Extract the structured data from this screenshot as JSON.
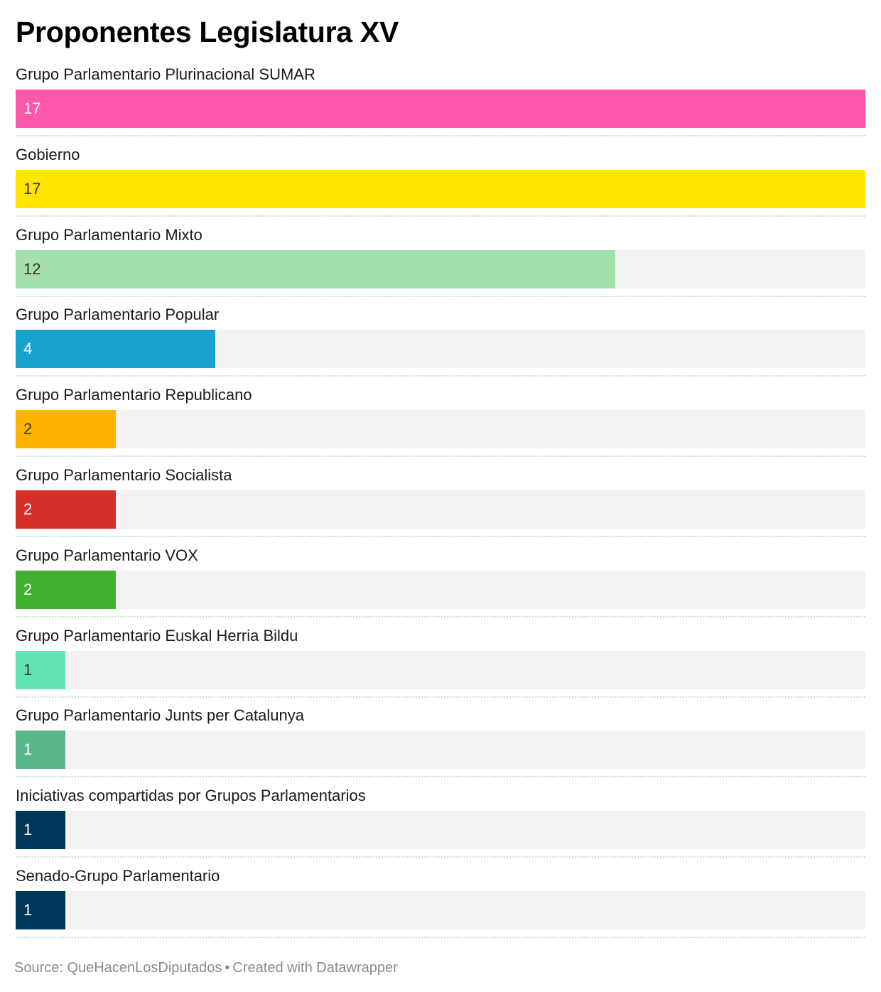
{
  "chart_data": {
    "type": "bar",
    "title": "Proponentes Legislatura XV",
    "orientation": "horizontal",
    "categories": [
      "Grupo Parlamentario Plurinacional SUMAR",
      "Gobierno",
      "Grupo Parlamentario Mixto",
      "Grupo Parlamentario Popular",
      "Grupo Parlamentario Republicano",
      "Grupo Parlamentario Socialista",
      "Grupo Parlamentario VOX",
      "Grupo Parlamentario Euskal Herria Bildu",
      "Grupo Parlamentario Junts per Catalunya",
      "Iniciativas compartidas por Grupos Parlamentarios",
      "Senado-Grupo Parlamentario"
    ],
    "values": [
      17,
      17,
      12,
      4,
      2,
      2,
      2,
      1,
      1,
      1,
      1
    ],
    "colors": [
      "#ff57a9",
      "#ffe500",
      "#a3e0ab",
      "#18a1cd",
      "#ffb400",
      "#d7302b",
      "#41b031",
      "#61e3b3",
      "#5cb68b",
      "#003859",
      "#003859"
    ],
    "value_text_colors": [
      "#ffffff",
      "#333333",
      "#333333",
      "#ffffff",
      "#333333",
      "#ffffff",
      "#ffffff",
      "#333333",
      "#ffffff",
      "#ffffff",
      "#ffffff"
    ],
    "xlim": [
      0,
      17
    ],
    "background_track": "#f2f2f2",
    "grid": false,
    "legend": "none"
  },
  "footer": {
    "source": "Source: QueHacenLosDiputados",
    "separator": "•",
    "credit": "Created with Datawrapper"
  }
}
